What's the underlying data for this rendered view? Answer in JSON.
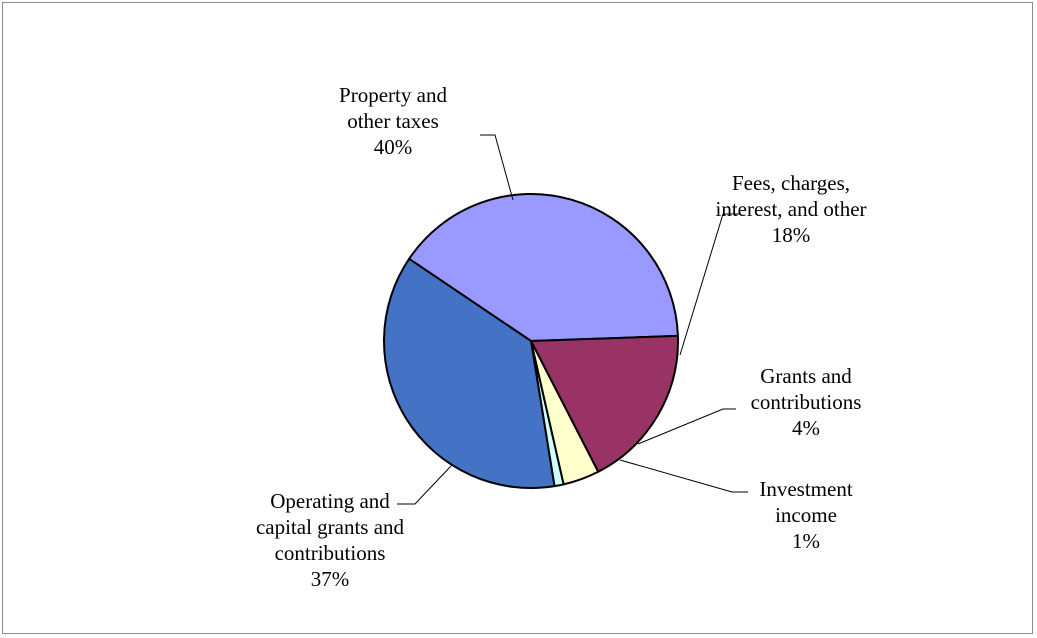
{
  "chart_data": {
    "type": "pie",
    "title": "",
    "slices": [
      {
        "label_lines": [
          "Property and",
          "other taxes"
        ],
        "pct_label": "40%",
        "value": 40,
        "color": "#9999ff"
      },
      {
        "label_lines": [
          "Fees, charges,",
          "interest, and other"
        ],
        "pct_label": "18%",
        "value": 18,
        "color": "#993366"
      },
      {
        "label_lines": [
          "Grants and",
          "contributions"
        ],
        "pct_label": "4%",
        "value": 4,
        "color": "#ffffcc"
      },
      {
        "label_lines": [
          "Investment",
          "income"
        ],
        "pct_label": "1%",
        "value": 1,
        "color": "#ccffff"
      },
      {
        "label_lines": [
          "Operating and",
          "capital grants and",
          "contributions"
        ],
        "pct_label": "37%",
        "value": 37,
        "color": "#4472c4"
      }
    ]
  }
}
